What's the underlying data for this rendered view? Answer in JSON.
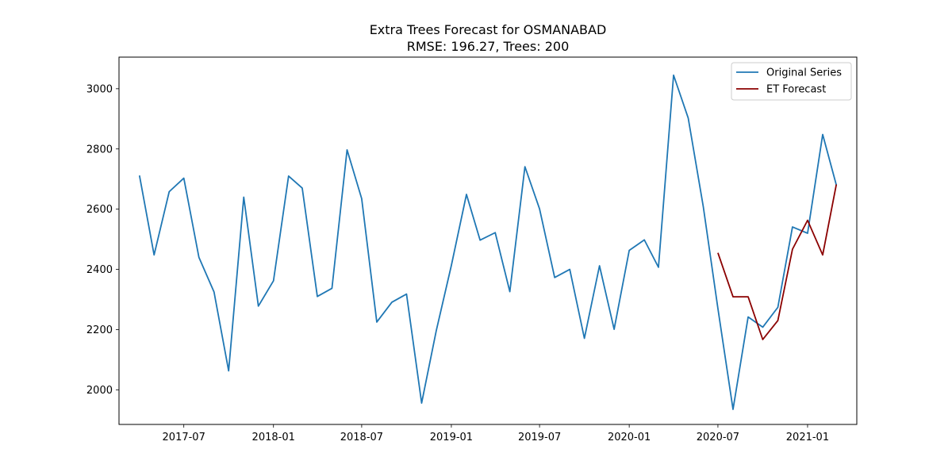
{
  "chart_data": {
    "type": "line",
    "title": "Extra Trees Forecast for OSMANABAD",
    "subtitle": "RMSE: 196.27, Trees: 200",
    "xlabel": "",
    "ylabel": "",
    "xlim": [
      "2017-02-18",
      "2021-04-12"
    ],
    "ylim": [
      1885,
      3105
    ],
    "x_ticks": [
      {
        "date": "2017-07-01",
        "label": "2017-07"
      },
      {
        "date": "2018-01-01",
        "label": "2018-01"
      },
      {
        "date": "2018-07-01",
        "label": "2018-07"
      },
      {
        "date": "2019-01-01",
        "label": "2019-01"
      },
      {
        "date": "2019-07-01",
        "label": "2019-07"
      },
      {
        "date": "2020-01-01",
        "label": "2020-01"
      },
      {
        "date": "2020-07-01",
        "label": "2020-07"
      },
      {
        "date": "2021-01-01",
        "label": "2021-01"
      }
    ],
    "y_ticks": [
      2000,
      2200,
      2400,
      2600,
      2800,
      3000
    ],
    "grid": false,
    "legend": "top-right",
    "series": [
      {
        "name": "Original Series",
        "color": "#1f77b4",
        "x": [
          "2017-04-01",
          "2017-05-01",
          "2017-06-01",
          "2017-07-01",
          "2017-08-01",
          "2017-09-01",
          "2017-10-01",
          "2017-11-01",
          "2017-12-01",
          "2018-01-01",
          "2018-02-01",
          "2018-03-01",
          "2018-04-01",
          "2018-05-01",
          "2018-06-01",
          "2018-07-01",
          "2018-08-01",
          "2018-09-01",
          "2018-10-01",
          "2018-11-01",
          "2018-12-01",
          "2019-01-01",
          "2019-02-01",
          "2019-03-01",
          "2019-04-01",
          "2019-05-01",
          "2019-06-01",
          "2019-07-01",
          "2019-08-01",
          "2019-09-01",
          "2019-10-01",
          "2019-11-01",
          "2019-12-01",
          "2020-01-01",
          "2020-02-01",
          "2020-03-01",
          "2020-04-01",
          "2020-05-01",
          "2020-06-01",
          "2020-07-01",
          "2020-08-01",
          "2020-09-01",
          "2020-10-01",
          "2020-11-01",
          "2020-12-01",
          "2021-01-01",
          "2021-02-01",
          "2021-03-01"
        ],
        "values": [
          2712,
          2448,
          2658,
          2703,
          2440,
          2325,
          2063,
          2640,
          2278,
          2362,
          2710,
          2670,
          2310,
          2337,
          2797,
          2635,
          2225,
          2291,
          2318,
          1956,
          2196,
          2413,
          2649,
          2497,
          2522,
          2326,
          2741,
          2601,
          2373,
          2400,
          2171,
          2412,
          2201,
          2463,
          2498,
          2407,
          3045,
          2903,
          2608,
          2270,
          1935,
          2242,
          2208,
          2274,
          2541,
          2520,
          2848,
          2680
        ]
      },
      {
        "name": "ET Forecast",
        "color": "#8b0000",
        "x": [
          "2020-07-01",
          "2020-08-01",
          "2020-09-01",
          "2020-10-01",
          "2020-11-01",
          "2020-12-01",
          "2021-01-01",
          "2021-02-01",
          "2021-03-01"
        ],
        "values": [
          2455,
          2309,
          2309,
          2167,
          2230,
          2467,
          2563,
          2448,
          2682
        ]
      }
    ]
  }
}
